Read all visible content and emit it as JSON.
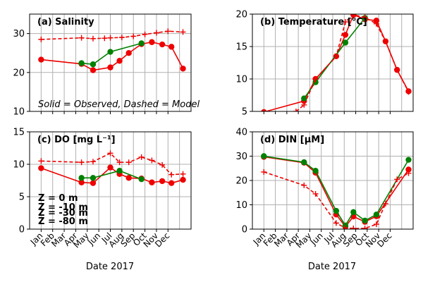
{
  "figure": {
    "xlabel": "Date 2017",
    "note": "Solid = Observed, Dashed = Model",
    "months": [
      "Jan",
      "Feb",
      "Mar",
      "Apr",
      "May",
      "Jun",
      "Jul",
      "Aug",
      "Sep",
      "Oct",
      "Nov",
      "Dec"
    ],
    "depth_legend": [
      {
        "label": "Z =   0 m",
        "color": "#ee0000"
      },
      {
        "label": "Z =  -10 m",
        "color": "#008000"
      },
      {
        "label": "Z =  -30 m",
        "color": "#0000dd"
      },
      {
        "label": "Z =  -80 m",
        "color": "#000000"
      }
    ],
    "colors": {
      "surface": "#ee0000",
      "m10": "#008000",
      "grid": "#b0b0b0"
    }
  },
  "chart_data": [
    {
      "type": "line",
      "title": "(a) Salinity",
      "ylim": [
        10,
        35
      ],
      "yticks": [
        10,
        20,
        30
      ],
      "series": [
        {
          "name": "Z = 0 m",
          "style": "observed",
          "color": "#ee0000",
          "x": [
            1,
            4.5,
            5.5,
            7,
            7.8,
            8.6,
            9.7,
            10.6,
            11.5,
            12.3,
            13.3
          ],
          "y": [
            23.3,
            22.2,
            20.6,
            21.3,
            23,
            25,
            27.3,
            27.8,
            27.2,
            26.6,
            21
          ]
        },
        {
          "name": "Z = -10 m",
          "style": "observed",
          "color": "#008000",
          "x": [
            4.5,
            5.5,
            7,
            9.7
          ],
          "y": [
            22.4,
            22.1,
            25.3,
            27.5
          ]
        },
        {
          "name": "Z = 0 m",
          "style": "model",
          "color": "#ee0000",
          "x": [
            1,
            4.5,
            5.5,
            6.5,
            7,
            8,
            9,
            10,
            11,
            12,
            13.3
          ],
          "y": [
            28.5,
            28.9,
            28.7,
            28.8,
            28.9,
            29,
            29.3,
            29.8,
            30.2,
            30.6,
            30.4
          ]
        }
      ]
    },
    {
      "type": "line",
      "title": "(b) Temperature [°C]",
      "ylim": [
        5,
        20
      ],
      "yticks": [
        5,
        10,
        15,
        20
      ],
      "series": [
        {
          "name": "Z = 0 m",
          "style": "observed",
          "color": "#ee0000",
          "x": [
            1,
            4.5,
            5.5,
            7.3,
            8.1,
            8.8,
            9.8,
            10.8,
            11.6,
            12.6,
            13.6
          ],
          "y": [
            4.9,
            6.6,
            10,
            13.5,
            16.8,
            19.9,
            19.2,
            19,
            15.8,
            11.4,
            8.1
          ]
        },
        {
          "name": "Z = -10 m",
          "style": "observed",
          "color": "#008000",
          "x": [
            4.5,
            5.5,
            8.1,
            9.8
          ],
          "y": [
            7,
            9.5,
            15.6,
            19.4
          ]
        },
        {
          "name": "Z = 0 m",
          "style": "model",
          "color": "#ee0000",
          "x": [
            3.8,
            4.5,
            5.5,
            7.3,
            8.1,
            8.8,
            9.8,
            10.8,
            11.6,
            12.6,
            13.6
          ],
          "y": [
            5,
            6,
            10,
            13.5,
            18.8,
            19.9,
            19.5,
            18.5,
            15.8,
            11.4,
            8
          ]
        }
      ]
    },
    {
      "type": "line",
      "title": "(c) DO [mg L⁻¹]",
      "ylim": [
        0,
        15
      ],
      "yticks": [
        0,
        5,
        10,
        15
      ],
      "series": [
        {
          "name": "Z = 0 m",
          "style": "observed",
          "color": "#ee0000",
          "x": [
            1,
            4.5,
            5.5,
            7,
            7.8,
            8.6,
            9.7,
            10.6,
            11.5,
            12.3,
            13.3
          ],
          "y": [
            9.4,
            7.2,
            7.1,
            9.5,
            8.5,
            7.9,
            7.8,
            7.2,
            7.4,
            7.1,
            7.6
          ]
        },
        {
          "name": "Z = -10 m",
          "style": "observed",
          "color": "#008000",
          "x": [
            4.5,
            5.5,
            7.8,
            9.7
          ],
          "y": [
            7.9,
            7.9,
            9,
            7.7
          ]
        },
        {
          "name": "Z = 0 m",
          "style": "model",
          "color": "#ee0000",
          "x": [
            1,
            4.5,
            5.5,
            7,
            7.8,
            8.6,
            9.7,
            10.6,
            11.5,
            12.3,
            13.3
          ],
          "y": [
            10.5,
            10.3,
            10.4,
            11.7,
            10.3,
            10.3,
            11.1,
            10.6,
            9.9,
            8.4,
            8.5
          ]
        }
      ]
    },
    {
      "type": "line",
      "title": "(d) DIN  [μM]",
      "ylim": [
        0,
        40
      ],
      "yticks": [
        0,
        10,
        20,
        30,
        40
      ],
      "series": [
        {
          "name": "Z = 0 m",
          "style": "observed",
          "color": "#ee0000",
          "x": [
            1,
            4.5,
            5.5,
            7.3,
            8.1,
            8.8,
            9.8,
            10.8,
            13.6
          ],
          "y": [
            29.7,
            27.3,
            23.2,
            6,
            1,
            5.2,
            3,
            5.3,
            24.5
          ]
        },
        {
          "name": "Z = -10 m",
          "style": "observed",
          "color": "#008000",
          "x": [
            1,
            4.5,
            5.5,
            7.3,
            8.1,
            8.8,
            9.8,
            10.8,
            13.6
          ],
          "y": [
            30,
            27.5,
            24,
            7.5,
            1.5,
            7,
            3.5,
            6,
            28.5
          ]
        },
        {
          "name": "Z = 0 m",
          "style": "model",
          "color": "#ee0000",
          "x": [
            1,
            4.5,
            5.5,
            7.3,
            8.1,
            8.8,
            9.8,
            10.8,
            11.6,
            12.6,
            13.6
          ],
          "y": [
            23.5,
            18,
            14.5,
            2.5,
            0.5,
            0.3,
            0.3,
            2,
            10.5,
            20.5,
            23
          ]
        }
      ]
    }
  ]
}
